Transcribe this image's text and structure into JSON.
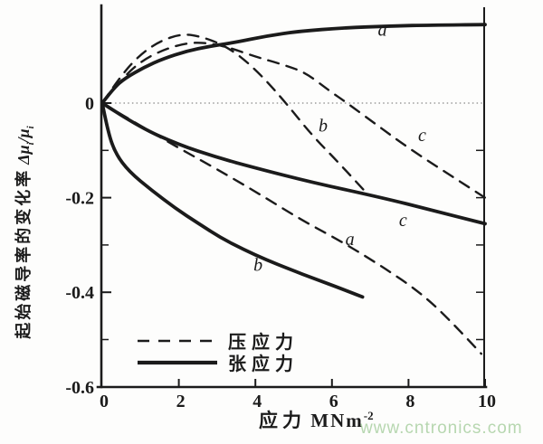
{
  "watermark": "www.cntronics.com",
  "colors": {
    "ink": "#1b1b1b",
    "watermark_green": "#b7d7b0",
    "paper": "#fdfdfc",
    "zero_line": "#6a6a6a"
  },
  "ylabel": {
    "cn": "起始磁导率的变化率",
    "sym1": "Δμ",
    "sub1": "i",
    "sym2": "/μ",
    "sub2": "i"
  },
  "xlabel": {
    "cn": "应力",
    "unit": "MNm",
    "sup": "-2"
  },
  "legend": {
    "dashed": "压应力",
    "solid": "张应力"
  },
  "chart_data": {
    "type": "line",
    "title": "",
    "xlabel": "应力 MNm⁻²",
    "ylabel": "起始磁导率的变化率 Δμi/μi",
    "xlim": [
      0,
      10
    ],
    "ylim": [
      -0.6,
      0.2
    ],
    "grid": false,
    "zero_line": true,
    "x_ticks": [
      {
        "v": 0,
        "label": "0"
      },
      {
        "v": 2,
        "label": "2"
      },
      {
        "v": 4,
        "label": "4"
      },
      {
        "v": 6,
        "label": "6"
      },
      {
        "v": 8,
        "label": "8"
      },
      {
        "v": 10,
        "label": "10"
      }
    ],
    "y_ticks": [
      {
        "v": 0,
        "label": "0"
      },
      {
        "v": -0.2,
        "label": "-0.2"
      },
      {
        "v": -0.4,
        "label": "-0.4"
      },
      {
        "v": -0.6,
        "label": "-0.6"
      }
    ],
    "y_minor_ticks": [
      -0.1,
      -0.3,
      -0.5
    ],
    "right_axis_ticks": [
      -0.1,
      -0.2,
      -0.3,
      -0.4,
      -0.5
    ],
    "legend_entries": [
      {
        "style": "dashed",
        "label": "压应力"
      },
      {
        "style": "solid",
        "label": "张应力"
      }
    ],
    "series": [
      {
        "name": "tensile-a",
        "stress": "张应力",
        "style": "solid",
        "label": {
          "text": "a",
          "u": 7.2,
          "v": 0.142
        },
        "points": [
          [
            0,
            0
          ],
          [
            0.3,
            0.032
          ],
          [
            0.6,
            0.053
          ],
          [
            1.1,
            0.076
          ],
          [
            1.6,
            0.094
          ],
          [
            2.2,
            0.11
          ],
          [
            2.8,
            0.12
          ],
          [
            3.45,
            0.128
          ],
          [
            4.3,
            0.142
          ],
          [
            5.15,
            0.152
          ],
          [
            6.3,
            0.159
          ],
          [
            7.5,
            0.163
          ],
          [
            8.7,
            0.165
          ],
          [
            10,
            0.166
          ]
        ]
      },
      {
        "name": "tensile-b",
        "stress": "张应力",
        "style": "solid",
        "label": {
          "text": "b",
          "u": 3.95,
          "v": -0.355
        },
        "points": [
          [
            0,
            0
          ],
          [
            0.15,
            -0.062
          ],
          [
            0.35,
            -0.107
          ],
          [
            0.7,
            -0.145
          ],
          [
            1.3,
            -0.185
          ],
          [
            1.9,
            -0.222
          ],
          [
            2.5,
            -0.254
          ],
          [
            3.1,
            -0.285
          ],
          [
            3.7,
            -0.31
          ],
          [
            4.3,
            -0.332
          ],
          [
            4.85,
            -0.35
          ],
          [
            5.6,
            -0.373
          ],
          [
            6.2,
            -0.391
          ],
          [
            6.8,
            -0.41
          ]
        ]
      },
      {
        "name": "tensile-c",
        "stress": "张应力",
        "style": "solid",
        "label": {
          "text": "c",
          "u": 7.75,
          "v": -0.26
        },
        "points": [
          [
            0,
            0
          ],
          [
            0.9,
            -0.048
          ],
          [
            2,
            -0.088
          ],
          [
            3,
            -0.115
          ],
          [
            4,
            -0.137
          ],
          [
            5.5,
            -0.168
          ],
          [
            7.3,
            -0.2
          ],
          [
            8.6,
            -0.226
          ],
          [
            10,
            -0.255
          ]
        ]
      },
      {
        "name": "compressive-a",
        "stress": "压应力",
        "style": "dashed",
        "label": {
          "text": "a",
          "u": 6.35,
          "v": -0.3
        },
        "points": [
          [
            0,
            0
          ],
          [
            1,
            -0.048
          ],
          [
            2,
            -0.095
          ],
          [
            3,
            -0.14
          ],
          [
            4.1,
            -0.192
          ],
          [
            5.2,
            -0.247
          ],
          [
            6.3,
            -0.295
          ],
          [
            7.3,
            -0.345
          ],
          [
            8.3,
            -0.4
          ],
          [
            9.1,
            -0.46
          ],
          [
            9.9,
            -0.53
          ]
        ]
      },
      {
        "name": "compressive-b",
        "stress": "压应力",
        "style": "dashed",
        "label": {
          "text": "b",
          "u": 5.65,
          "v": -0.06
        },
        "points": [
          [
            0,
            0
          ],
          [
            0.5,
            0.06
          ],
          [
            1.0,
            0.103
          ],
          [
            1.5,
            0.131
          ],
          [
            2.1,
            0.147
          ],
          [
            2.6,
            0.14
          ],
          [
            3.1,
            0.125
          ],
          [
            3.6,
            0.1
          ],
          [
            4.2,
            0.055
          ],
          [
            4.8,
            0
          ],
          [
            5.5,
            -0.07
          ],
          [
            6.2,
            -0.128
          ],
          [
            6.9,
            -0.19
          ]
        ]
      },
      {
        "name": "compressive-c",
        "stress": "压应力",
        "style": "dashed",
        "label": {
          "text": "c",
          "u": 8.25,
          "v": -0.08
        },
        "points": [
          [
            0,
            0
          ],
          [
            0.5,
            0.05
          ],
          [
            1.0,
            0.088
          ],
          [
            1.6,
            0.113
          ],
          [
            2.2,
            0.127
          ],
          [
            2.7,
            0.128
          ],
          [
            3.3,
            0.118
          ],
          [
            4.0,
            0.098
          ],
          [
            4.7,
            0.082
          ],
          [
            5.3,
            0.065
          ],
          [
            5.9,
            0.028
          ],
          [
            6.4,
            0
          ],
          [
            7.2,
            -0.048
          ],
          [
            8.0,
            -0.095
          ],
          [
            9.0,
            -0.148
          ],
          [
            10,
            -0.2
          ]
        ]
      }
    ]
  }
}
